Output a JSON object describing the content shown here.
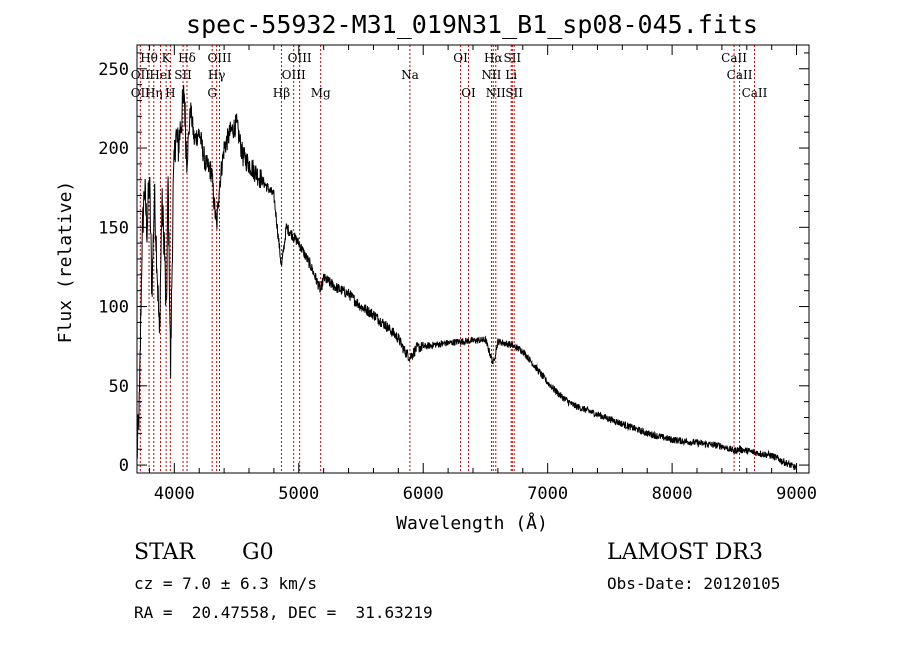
{
  "chart_data": {
    "type": "line",
    "title": "spec-55932-M31_019N31_B1_sp08-045.fits",
    "xlabel": "Wavelength (Å)",
    "ylabel": "Flux (relative)",
    "xlim": [
      3700,
      9100
    ],
    "ylim": [
      -5,
      265
    ],
    "xticks": [
      4000,
      5000,
      6000,
      7000,
      8000,
      9000
    ],
    "yticks": [
      0,
      50,
      100,
      150,
      200,
      250
    ],
    "grid": false,
    "series": [
      {
        "name": "spectrum",
        "anchors": [
          [
            3700,
            5
          ],
          [
            3720,
            40
          ],
          [
            3740,
            140
          ],
          [
            3760,
            175
          ],
          [
            3780,
            150
          ],
          [
            3800,
            180
          ],
          [
            3820,
            110
          ],
          [
            3840,
            170
          ],
          [
            3860,
            130
          ],
          [
            3880,
            80
          ],
          [
            3900,
            165
          ],
          [
            3920,
            140
          ],
          [
            3935,
            90
          ],
          [
            3950,
            180
          ],
          [
            3970,
            60
          ],
          [
            3990,
            170
          ],
          [
            4010,
            210
          ],
          [
            4030,
            200
          ],
          [
            4060,
            220
          ],
          [
            4080,
            235
          ],
          [
            4100,
            190
          ],
          [
            4130,
            225
          ],
          [
            4160,
            205
          ],
          [
            4200,
            210
          ],
          [
            4250,
            190
          ],
          [
            4300,
            185
          ],
          [
            4320,
            165
          ],
          [
            4340,
            150
          ],
          [
            4360,
            175
          ],
          [
            4400,
            200
          ],
          [
            4450,
            210
          ],
          [
            4500,
            215
          ],
          [
            4550,
            195
          ],
          [
            4600,
            190
          ],
          [
            4700,
            180
          ],
          [
            4800,
            170
          ],
          [
            4861,
            125
          ],
          [
            4900,
            150
          ],
          [
            5000,
            140
          ],
          [
            5100,
            125
          ],
          [
            5176,
            110
          ],
          [
            5200,
            118
          ],
          [
            5300,
            112
          ],
          [
            5400,
            108
          ],
          [
            5500,
            100
          ],
          [
            5600,
            95
          ],
          [
            5700,
            88
          ],
          [
            5800,
            80
          ],
          [
            5850,
            72
          ],
          [
            5893,
            68
          ],
          [
            5950,
            74
          ],
          [
            6100,
            76
          ],
          [
            6300,
            78
          ],
          [
            6500,
            79
          ],
          [
            6563,
            64
          ],
          [
            6600,
            78
          ],
          [
            6700,
            76
          ],
          [
            6800,
            72
          ],
          [
            6900,
            62
          ],
          [
            7000,
            52
          ],
          [
            7100,
            44
          ],
          [
            7200,
            38
          ],
          [
            7400,
            32
          ],
          [
            7600,
            26
          ],
          [
            7800,
            20
          ],
          [
            8000,
            16
          ],
          [
            8200,
            14
          ],
          [
            8400,
            12
          ],
          [
            8498,
            9
          ],
          [
            8542,
            10
          ],
          [
            8662,
            8
          ],
          [
            8800,
            6
          ],
          [
            8950,
            0
          ],
          [
            9000,
            -2
          ]
        ]
      }
    ],
    "line_labels": [
      {
        "row": 1,
        "label": "Hθ",
        "wl": 3797
      },
      {
        "row": 1,
        "label": "K",
        "wl": 3934
      },
      {
        "row": 1,
        "label": "Hδ",
        "wl": 4102
      },
      {
        "row": 1,
        "label": "OIII",
        "wl": 4363
      },
      {
        "row": 1,
        "label": "OIII",
        "wl": 5007
      },
      {
        "row": 1,
        "label": "OI",
        "wl": 6300
      },
      {
        "row": 1,
        "label": "Hα",
        "wl": 6563
      },
      {
        "row": 1,
        "label": "SII",
        "wl": 6716
      },
      {
        "row": 1,
        "label": "CaII",
        "wl": 8498
      },
      {
        "row": 2,
        "label": "OII",
        "wl": 3727
      },
      {
        "row": 2,
        "label": "HeI",
        "wl": 3889
      },
      {
        "row": 2,
        "label": "SII",
        "wl": 4070
      },
      {
        "row": 2,
        "label": "Hγ",
        "wl": 4340
      },
      {
        "row": 2,
        "label": "OIII",
        "wl": 4959
      },
      {
        "row": 2,
        "label": "Na",
        "wl": 5893
      },
      {
        "row": 2,
        "label": "NII",
        "wl": 6548
      },
      {
        "row": 2,
        "label": "Li",
        "wl": 6707
      },
      {
        "row": 2,
        "label": "CaII",
        "wl": 8542
      },
      {
        "row": 3,
        "label": "OII",
        "wl": 3727
      },
      {
        "row": 3,
        "label": "Hη",
        "wl": 3835
      },
      {
        "row": 3,
        "label": "H",
        "wl": 3968
      },
      {
        "row": 3,
        "label": "G",
        "wl": 4304
      },
      {
        "row": 3,
        "label": "Hβ",
        "wl": 4861
      },
      {
        "row": 3,
        "label": "Mg",
        "wl": 5176
      },
      {
        "row": 3,
        "label": "OI",
        "wl": 6364
      },
      {
        "row": 3,
        "label": "NII",
        "wl": 6583
      },
      {
        "row": 3,
        "label": "SII",
        "wl": 6731
      },
      {
        "row": 3,
        "label": "CaII",
        "wl": 8662
      }
    ],
    "line_color": "#cc0000"
  },
  "info": {
    "object_class": "STAR",
    "subclass": "G0",
    "survey": "LAMOST DR3",
    "cz_text": "cz = 7.0 ± 6.3 km/s",
    "obs_date": "Obs-Date: 20120105",
    "coords": "RA =  20.47558, DEC =  31.63219"
  }
}
